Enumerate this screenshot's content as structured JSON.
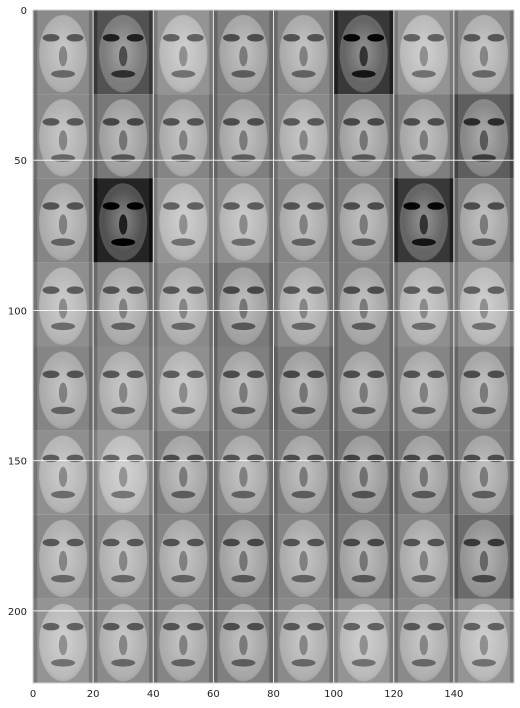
{
  "figure": {
    "x_ticks": [
      "0",
      "20",
      "40",
      "60",
      "80",
      "100",
      "120",
      "140"
    ],
    "y_ticks": [
      "0",
      "50",
      "100",
      "150",
      "200"
    ]
  },
  "image_grid": {
    "rows": 8,
    "cols": 8,
    "tile_width_units": 20,
    "tile_height_units": 28,
    "x_range": [
      0,
      160
    ],
    "y_range": [
      0,
      224
    ],
    "x_tick_values": [
      0,
      20,
      40,
      60,
      80,
      100,
      120,
      140
    ],
    "y_tick_values": [
      0,
      50,
      100,
      150,
      200
    ],
    "tile_brightness": [
      [
        0.62,
        0.4,
        0.66,
        0.58,
        0.6,
        0.3,
        0.66,
        0.62
      ],
      [
        0.62,
        0.55,
        0.6,
        0.58,
        0.62,
        0.56,
        0.58,
        0.45
      ],
      [
        0.6,
        0.22,
        0.66,
        0.64,
        0.6,
        0.58,
        0.3,
        0.58
      ],
      [
        0.64,
        0.6,
        0.62,
        0.56,
        0.62,
        0.58,
        0.64,
        0.66
      ],
      [
        0.6,
        0.62,
        0.64,
        0.58,
        0.56,
        0.58,
        0.6,
        0.58
      ],
      [
        0.64,
        0.68,
        0.58,
        0.6,
        0.58,
        0.54,
        0.56,
        0.58
      ],
      [
        0.62,
        0.62,
        0.6,
        0.56,
        0.6,
        0.56,
        0.6,
        0.5
      ],
      [
        0.66,
        0.62,
        0.6,
        0.58,
        0.62,
        0.66,
        0.62,
        0.66
      ]
    ]
  }
}
